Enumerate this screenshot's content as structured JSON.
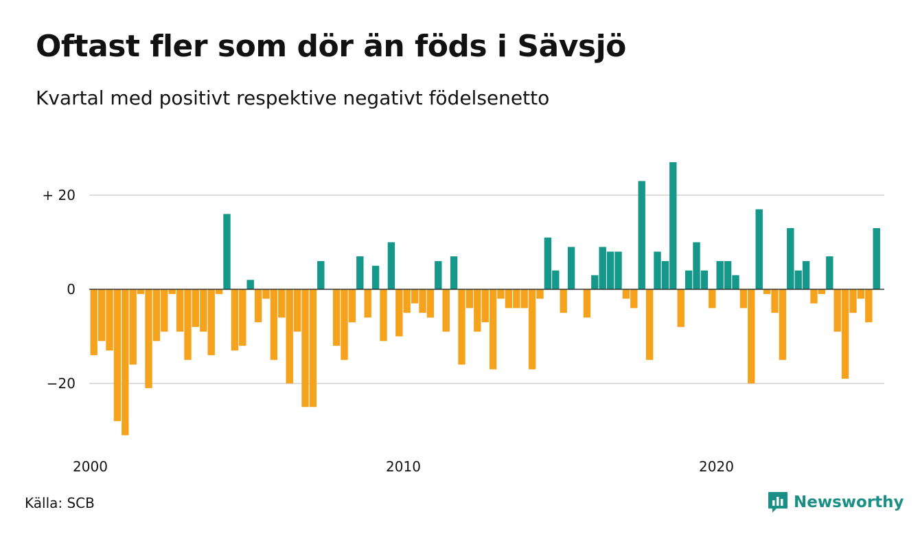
{
  "chart_data": {
    "type": "bar",
    "title": "Oftast fler som dör än föds i Sävsjö",
    "subtitle": "Kvartal med positivt respektive negativt födelsenetto",
    "x_start": "2000",
    "x_tick_labels": [
      "2000",
      "2010",
      "2020"
    ],
    "y_ticks": [
      {
        "value": 20,
        "label": "+ 20"
      },
      {
        "value": 0,
        "label": "0"
      },
      {
        "value": -20,
        "label": "−20"
      }
    ],
    "ylim": [
      -33,
      29
    ],
    "grid": true,
    "values": [
      -14,
      -11,
      -13,
      -28,
      -31,
      -16,
      -1,
      -21,
      -11,
      -9,
      -1,
      -9,
      -15,
      -8,
      -9,
      -14,
      -1,
      16,
      -13,
      -12,
      2,
      -7,
      -2,
      -15,
      -6,
      -20,
      -9,
      -25,
      -25,
      6,
      0,
      -12,
      -15,
      -7,
      7,
      -6,
      5,
      -11,
      10,
      -10,
      -5,
      -3,
      -5,
      -6,
      6,
      -9,
      7,
      -16,
      -4,
      -9,
      -7,
      -17,
      -2,
      -4,
      -4,
      -4,
      -17,
      -2,
      11,
      4,
      -5,
      9,
      0,
      -6,
      3,
      9,
      8,
      8,
      -2,
      -4,
      23,
      -15,
      8,
      6,
      27,
      -8,
      4,
      10,
      4,
      -4,
      6,
      6,
      3,
      -4,
      -20,
      17,
      -1,
      -5,
      -15,
      13,
      4,
      6,
      -3,
      -1,
      7,
      -9,
      -19,
      -5,
      -2,
      -7,
      13
    ],
    "colors": {
      "positive": "#15988a",
      "negative": "#f5a21c",
      "grid": "#dddddd",
      "zero_line": "#333333"
    }
  },
  "source": "Källa: SCB",
  "brand": {
    "name": "Newsworthy",
    "icon": "newsworthy-logo-icon",
    "color": "#1a8f85"
  }
}
